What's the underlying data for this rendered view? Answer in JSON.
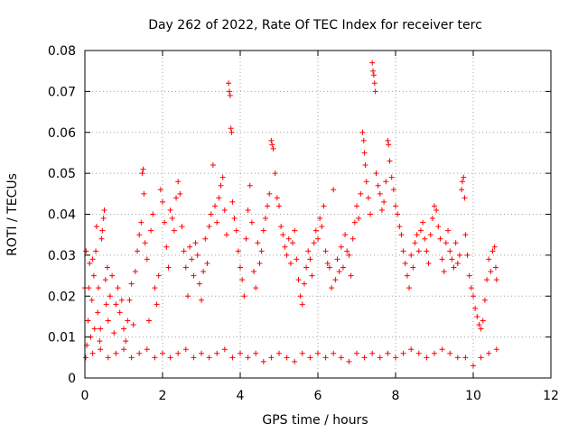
{
  "chart_data": {
    "type": "scatter",
    "title": "Day 262 of 2022, Rate Of TEC Index for receiver terc",
    "xlabel": "GPS time / hours",
    "ylabel": "ROTI / TECUs",
    "xlim": [
      0,
      12
    ],
    "ylim": [
      0,
      0.08
    ],
    "x_ticks": [
      "0",
      "2",
      "4",
      "6",
      "8",
      "10",
      "12"
    ],
    "y_ticks": [
      "0",
      "0.01",
      "0.02",
      "0.03",
      "0.04",
      "0.05",
      "0.06",
      "0.07",
      "0.08"
    ],
    "grid": true,
    "marker": "+",
    "color": "#ff0000",
    "series": [
      {
        "points": [
          [
            0.0,
            0.022
          ],
          [
            0.03,
            0.031
          ],
          [
            0.05,
            0.008
          ],
          [
            0.08,
            0.014
          ],
          [
            0.1,
            0.022
          ],
          [
            0.12,
            0.028
          ],
          [
            0.15,
            0.01
          ],
          [
            0.18,
            0.019
          ],
          [
            0.2,
            0.029
          ],
          [
            0.23,
            0.025
          ],
          [
            0.25,
            0.012
          ],
          [
            0.28,
            0.031
          ],
          [
            0.3,
            0.037
          ],
          [
            0.33,
            0.016
          ],
          [
            0.35,
            0.022
          ],
          [
            0.38,
            0.009
          ],
          [
            0.4,
            0.012
          ],
          [
            0.43,
            0.034
          ],
          [
            0.45,
            0.036
          ],
          [
            0.48,
            0.039
          ],
          [
            0.5,
            0.041
          ],
          [
            0.53,
            0.024
          ],
          [
            0.55,
            0.018
          ],
          [
            0.58,
            0.027
          ],
          [
            0.6,
            0.014
          ],
          [
            0.65,
            0.02
          ],
          [
            0.7,
            0.025
          ],
          [
            0.75,
            0.011
          ],
          [
            0.8,
            0.018
          ],
          [
            0.85,
            0.022
          ],
          [
            0.9,
            0.016
          ],
          [
            0.95,
            0.019
          ],
          [
            1.0,
            0.012
          ],
          [
            1.05,
            0.009
          ],
          [
            1.1,
            0.014
          ],
          [
            1.15,
            0.019
          ],
          [
            1.2,
            0.023
          ],
          [
            1.25,
            0.013
          ],
          [
            1.3,
            0.026
          ],
          [
            1.35,
            0.031
          ],
          [
            1.4,
            0.035
          ],
          [
            1.45,
            0.038
          ],
          [
            1.48,
            0.05
          ],
          [
            1.5,
            0.051
          ],
          [
            1.52,
            0.045
          ],
          [
            1.55,
            0.033
          ],
          [
            1.6,
            0.029
          ],
          [
            1.65,
            0.014
          ],
          [
            1.7,
            0.036
          ],
          [
            1.75,
            0.04
          ],
          [
            1.8,
            0.022
          ],
          [
            1.85,
            0.018
          ],
          [
            1.9,
            0.025
          ],
          [
            1.95,
            0.046
          ],
          [
            2.0,
            0.043
          ],
          [
            2.05,
            0.038
          ],
          [
            2.1,
            0.032
          ],
          [
            2.15,
            0.027
          ],
          [
            2.2,
            0.041
          ],
          [
            2.25,
            0.039
          ],
          [
            2.3,
            0.036
          ],
          [
            2.35,
            0.044
          ],
          [
            2.4,
            0.048
          ],
          [
            2.45,
            0.045
          ],
          [
            2.5,
            0.037
          ],
          [
            2.55,
            0.031
          ],
          [
            2.6,
            0.027
          ],
          [
            2.65,
            0.02
          ],
          [
            2.7,
            0.032
          ],
          [
            2.75,
            0.029
          ],
          [
            2.8,
            0.025
          ],
          [
            2.85,
            0.033
          ],
          [
            2.9,
            0.03
          ],
          [
            2.95,
            0.023
          ],
          [
            3.0,
            0.019
          ],
          [
            3.05,
            0.026
          ],
          [
            3.1,
            0.034
          ],
          [
            3.15,
            0.028
          ],
          [
            3.2,
            0.037
          ],
          [
            3.25,
            0.04
          ],
          [
            3.3,
            0.052
          ],
          [
            3.35,
            0.042
          ],
          [
            3.4,
            0.038
          ],
          [
            3.45,
            0.044
          ],
          [
            3.5,
            0.047
          ],
          [
            3.55,
            0.049
          ],
          [
            3.6,
            0.041
          ],
          [
            3.65,
            0.035
          ],
          [
            3.7,
            0.072
          ],
          [
            3.72,
            0.07
          ],
          [
            3.74,
            0.069
          ],
          [
            3.76,
            0.061
          ],
          [
            3.78,
            0.06
          ],
          [
            3.8,
            0.043
          ],
          [
            3.85,
            0.039
          ],
          [
            3.9,
            0.036
          ],
          [
            3.95,
            0.031
          ],
          [
            4.0,
            0.027
          ],
          [
            4.05,
            0.024
          ],
          [
            4.1,
            0.02
          ],
          [
            4.15,
            0.034
          ],
          [
            4.2,
            0.041
          ],
          [
            4.25,
            0.047
          ],
          [
            4.3,
            0.038
          ],
          [
            4.35,
            0.026
          ],
          [
            4.4,
            0.022
          ],
          [
            4.45,
            0.033
          ],
          [
            4.5,
            0.028
          ],
          [
            4.55,
            0.031
          ],
          [
            4.6,
            0.036
          ],
          [
            4.65,
            0.039
          ],
          [
            4.7,
            0.042
          ],
          [
            4.75,
            0.045
          ],
          [
            4.8,
            0.058
          ],
          [
            4.82,
            0.057
          ],
          [
            4.85,
            0.056
          ],
          [
            4.9,
            0.05
          ],
          [
            4.95,
            0.044
          ],
          [
            5.0,
            0.042
          ],
          [
            5.05,
            0.037
          ],
          [
            5.1,
            0.035
          ],
          [
            5.15,
            0.032
          ],
          [
            5.2,
            0.03
          ],
          [
            5.25,
            0.034
          ],
          [
            5.3,
            0.028
          ],
          [
            5.35,
            0.033
          ],
          [
            5.4,
            0.036
          ],
          [
            5.45,
            0.029
          ],
          [
            5.5,
            0.024
          ],
          [
            5.55,
            0.02
          ],
          [
            5.6,
            0.018
          ],
          [
            5.65,
            0.023
          ],
          [
            5.7,
            0.027
          ],
          [
            5.75,
            0.031
          ],
          [
            5.8,
            0.029
          ],
          [
            5.85,
            0.025
          ],
          [
            5.9,
            0.033
          ],
          [
            5.95,
            0.036
          ],
          [
            6.0,
            0.034
          ],
          [
            6.05,
            0.039
          ],
          [
            6.1,
            0.037
          ],
          [
            6.15,
            0.042
          ],
          [
            6.2,
            0.031
          ],
          [
            6.25,
            0.028
          ],
          [
            6.3,
            0.027
          ],
          [
            6.35,
            0.022
          ],
          [
            6.4,
            0.046
          ],
          [
            6.45,
            0.024
          ],
          [
            6.5,
            0.029
          ],
          [
            6.55,
            0.026
          ],
          [
            6.6,
            0.032
          ],
          [
            6.65,
            0.027
          ],
          [
            6.7,
            0.035
          ],
          [
            6.75,
            0.031
          ],
          [
            6.8,
            0.03
          ],
          [
            6.85,
            0.025
          ],
          [
            6.9,
            0.034
          ],
          [
            6.95,
            0.038
          ],
          [
            7.0,
            0.042
          ],
          [
            7.05,
            0.039
          ],
          [
            7.1,
            0.045
          ],
          [
            7.15,
            0.06
          ],
          [
            7.18,
            0.058
          ],
          [
            7.2,
            0.055
          ],
          [
            7.22,
            0.052
          ],
          [
            7.25,
            0.048
          ],
          [
            7.3,
            0.044
          ],
          [
            7.35,
            0.04
          ],
          [
            7.4,
            0.077
          ],
          [
            7.42,
            0.075
          ],
          [
            7.44,
            0.074
          ],
          [
            7.46,
            0.072
          ],
          [
            7.48,
            0.07
          ],
          [
            7.5,
            0.05
          ],
          [
            7.55,
            0.047
          ],
          [
            7.6,
            0.045
          ],
          [
            7.65,
            0.041
          ],
          [
            7.7,
            0.043
          ],
          [
            7.75,
            0.048
          ],
          [
            7.8,
            0.058
          ],
          [
            7.82,
            0.057
          ],
          [
            7.85,
            0.053
          ],
          [
            7.9,
            0.049
          ],
          [
            7.95,
            0.046
          ],
          [
            8.0,
            0.042
          ],
          [
            8.05,
            0.04
          ],
          [
            8.1,
            0.037
          ],
          [
            8.15,
            0.035
          ],
          [
            8.2,
            0.031
          ],
          [
            8.25,
            0.028
          ],
          [
            8.3,
            0.025
          ],
          [
            8.35,
            0.022
          ],
          [
            8.4,
            0.03
          ],
          [
            8.45,
            0.027
          ],
          [
            8.5,
            0.033
          ],
          [
            8.55,
            0.035
          ],
          [
            8.6,
            0.031
          ],
          [
            8.65,
            0.036
          ],
          [
            8.7,
            0.038
          ],
          [
            8.75,
            0.034
          ],
          [
            8.8,
            0.031
          ],
          [
            8.85,
            0.028
          ],
          [
            8.9,
            0.035
          ],
          [
            8.95,
            0.039
          ],
          [
            9.0,
            0.042
          ],
          [
            9.05,
            0.041
          ],
          [
            9.1,
            0.037
          ],
          [
            9.15,
            0.034
          ],
          [
            9.2,
            0.029
          ],
          [
            9.25,
            0.026
          ],
          [
            9.3,
            0.033
          ],
          [
            9.35,
            0.036
          ],
          [
            9.4,
            0.031
          ],
          [
            9.45,
            0.029
          ],
          [
            9.5,
            0.027
          ],
          [
            9.55,
            0.033
          ],
          [
            9.6,
            0.028
          ],
          [
            9.65,
            0.03
          ],
          [
            9.7,
            0.046
          ],
          [
            9.72,
            0.048
          ],
          [
            9.75,
            0.049
          ],
          [
            9.78,
            0.044
          ],
          [
            9.8,
            0.035
          ],
          [
            9.85,
            0.03
          ],
          [
            9.9,
            0.025
          ],
          [
            9.95,
            0.022
          ],
          [
            10.0,
            0.02
          ],
          [
            10.05,
            0.017
          ],
          [
            10.1,
            0.015
          ],
          [
            10.15,
            0.013
          ],
          [
            10.2,
            0.012
          ],
          [
            10.25,
            0.014
          ],
          [
            10.3,
            0.019
          ],
          [
            10.35,
            0.024
          ],
          [
            10.4,
            0.029
          ],
          [
            10.45,
            0.026
          ],
          [
            10.5,
            0.031
          ],
          [
            10.55,
            0.032
          ],
          [
            10.58,
            0.027
          ],
          [
            10.6,
            0.024
          ],
          [
            0.02,
            0.005
          ],
          [
            0.2,
            0.006
          ],
          [
            0.4,
            0.007
          ],
          [
            0.6,
            0.005
          ],
          [
            0.8,
            0.006
          ],
          [
            1.0,
            0.007
          ],
          [
            1.2,
            0.005
          ],
          [
            1.4,
            0.006
          ],
          [
            1.6,
            0.007
          ],
          [
            1.8,
            0.005
          ],
          [
            2.0,
            0.006
          ],
          [
            2.2,
            0.005
          ],
          [
            2.4,
            0.006
          ],
          [
            2.6,
            0.007
          ],
          [
            2.8,
            0.005
          ],
          [
            3.0,
            0.006
          ],
          [
            3.2,
            0.005
          ],
          [
            3.4,
            0.006
          ],
          [
            3.6,
            0.007
          ],
          [
            3.8,
            0.005
          ],
          [
            4.0,
            0.006
          ],
          [
            4.2,
            0.005
          ],
          [
            4.4,
            0.006
          ],
          [
            4.6,
            0.004
          ],
          [
            4.8,
            0.005
          ],
          [
            5.0,
            0.006
          ],
          [
            5.2,
            0.005
          ],
          [
            5.4,
            0.004
          ],
          [
            5.6,
            0.006
          ],
          [
            5.8,
            0.005
          ],
          [
            6.0,
            0.006
          ],
          [
            6.2,
            0.005
          ],
          [
            6.4,
            0.006
          ],
          [
            6.6,
            0.005
          ],
          [
            6.8,
            0.004
          ],
          [
            7.0,
            0.006
          ],
          [
            7.2,
            0.005
          ],
          [
            7.4,
            0.006
          ],
          [
            7.6,
            0.005
          ],
          [
            7.8,
            0.006
          ],
          [
            8.0,
            0.005
          ],
          [
            8.2,
            0.006
          ],
          [
            8.4,
            0.007
          ],
          [
            8.6,
            0.006
          ],
          [
            8.8,
            0.005
          ],
          [
            9.0,
            0.006
          ],
          [
            9.2,
            0.007
          ],
          [
            9.4,
            0.006
          ],
          [
            9.6,
            0.005
          ],
          [
            9.8,
            0.005
          ],
          [
            10.0,
            0.003
          ],
          [
            10.2,
            0.005
          ],
          [
            10.4,
            0.006
          ],
          [
            10.6,
            0.007
          ]
        ]
      }
    ]
  }
}
